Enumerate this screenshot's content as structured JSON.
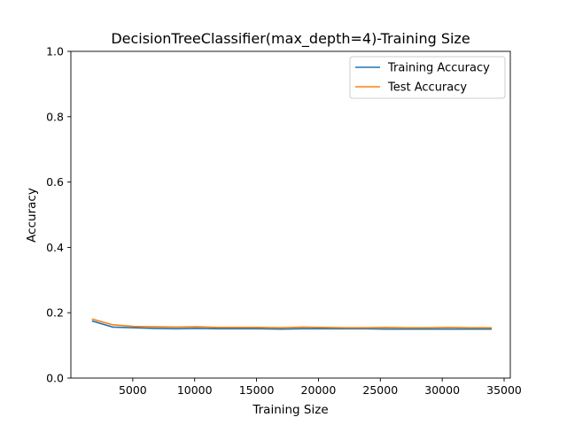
{
  "chart_data": {
    "type": "line",
    "title": "DecisionTreeClassifier(max_depth=4)-Training Size",
    "xlabel": "Training Size",
    "ylabel": "Accuracy",
    "xlim": [
      0,
      35500
    ],
    "ylim": [
      0.0,
      1.0
    ],
    "xticks": [
      5000,
      10000,
      15000,
      20000,
      25000,
      30000,
      35000
    ],
    "xtick_labels": [
      "5000",
      "10000",
      "15000",
      "20000",
      "25000",
      "30000",
      "35000"
    ],
    "yticks": [
      0.0,
      0.2,
      0.4,
      0.6,
      0.8,
      1.0
    ],
    "ytick_labels": [
      "0.0",
      "0.2",
      "0.4",
      "0.6",
      "0.8",
      "1.0"
    ],
    "grid": false,
    "legend_position": "top-right",
    "x": [
      1700,
      3400,
      5100,
      6800,
      8500,
      10200,
      11900,
      13600,
      15300,
      17000,
      18700,
      20400,
      22100,
      23800,
      25500,
      27200,
      28900,
      30600,
      32300,
      34000
    ],
    "series": [
      {
        "name": "Training Accuracy",
        "color": "#1f77b4",
        "values": [
          0.175,
          0.156,
          0.154,
          0.152,
          0.151,
          0.152,
          0.151,
          0.151,
          0.151,
          0.15,
          0.151,
          0.151,
          0.151,
          0.151,
          0.15,
          0.15,
          0.15,
          0.15,
          0.15,
          0.15
        ]
      },
      {
        "name": "Test Accuracy",
        "color": "#ff7f0e",
        "values": [
          0.181,
          0.163,
          0.158,
          0.157,
          0.156,
          0.157,
          0.155,
          0.155,
          0.155,
          0.154,
          0.156,
          0.155,
          0.154,
          0.154,
          0.155,
          0.154,
          0.154,
          0.155,
          0.154,
          0.154
        ]
      }
    ]
  }
}
